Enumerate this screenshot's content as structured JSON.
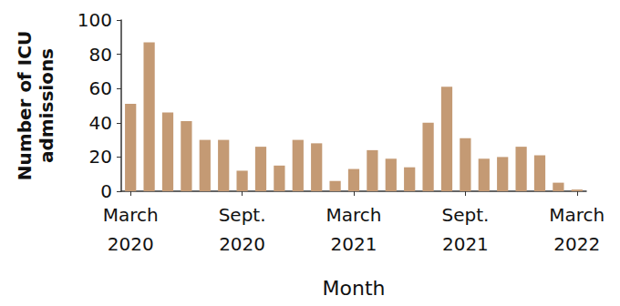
{
  "chart_data": {
    "type": "bar",
    "x_label": "Month",
    "y_label": "Number of ICU\nadmissions",
    "categories": [
      "March\n2020",
      null,
      null,
      null,
      null,
      null,
      "Sept.\n2020",
      null,
      null,
      null,
      null,
      null,
      "March\n2021",
      null,
      null,
      null,
      null,
      null,
      "Sept.\n2021",
      null,
      null,
      null,
      null,
      null,
      "March\n2022"
    ],
    "values": [
      51,
      87,
      46,
      41,
      30,
      30,
      12,
      26,
      15,
      30,
      28,
      6,
      13,
      24,
      19,
      14,
      40,
      61,
      31,
      19,
      20,
      26,
      21,
      5,
      1
    ],
    "color": "#c49a74",
    "ylim": [
      0,
      100
    ],
    "yticks": [
      0,
      20,
      40,
      60,
      80,
      100
    ],
    "grid": false
  }
}
